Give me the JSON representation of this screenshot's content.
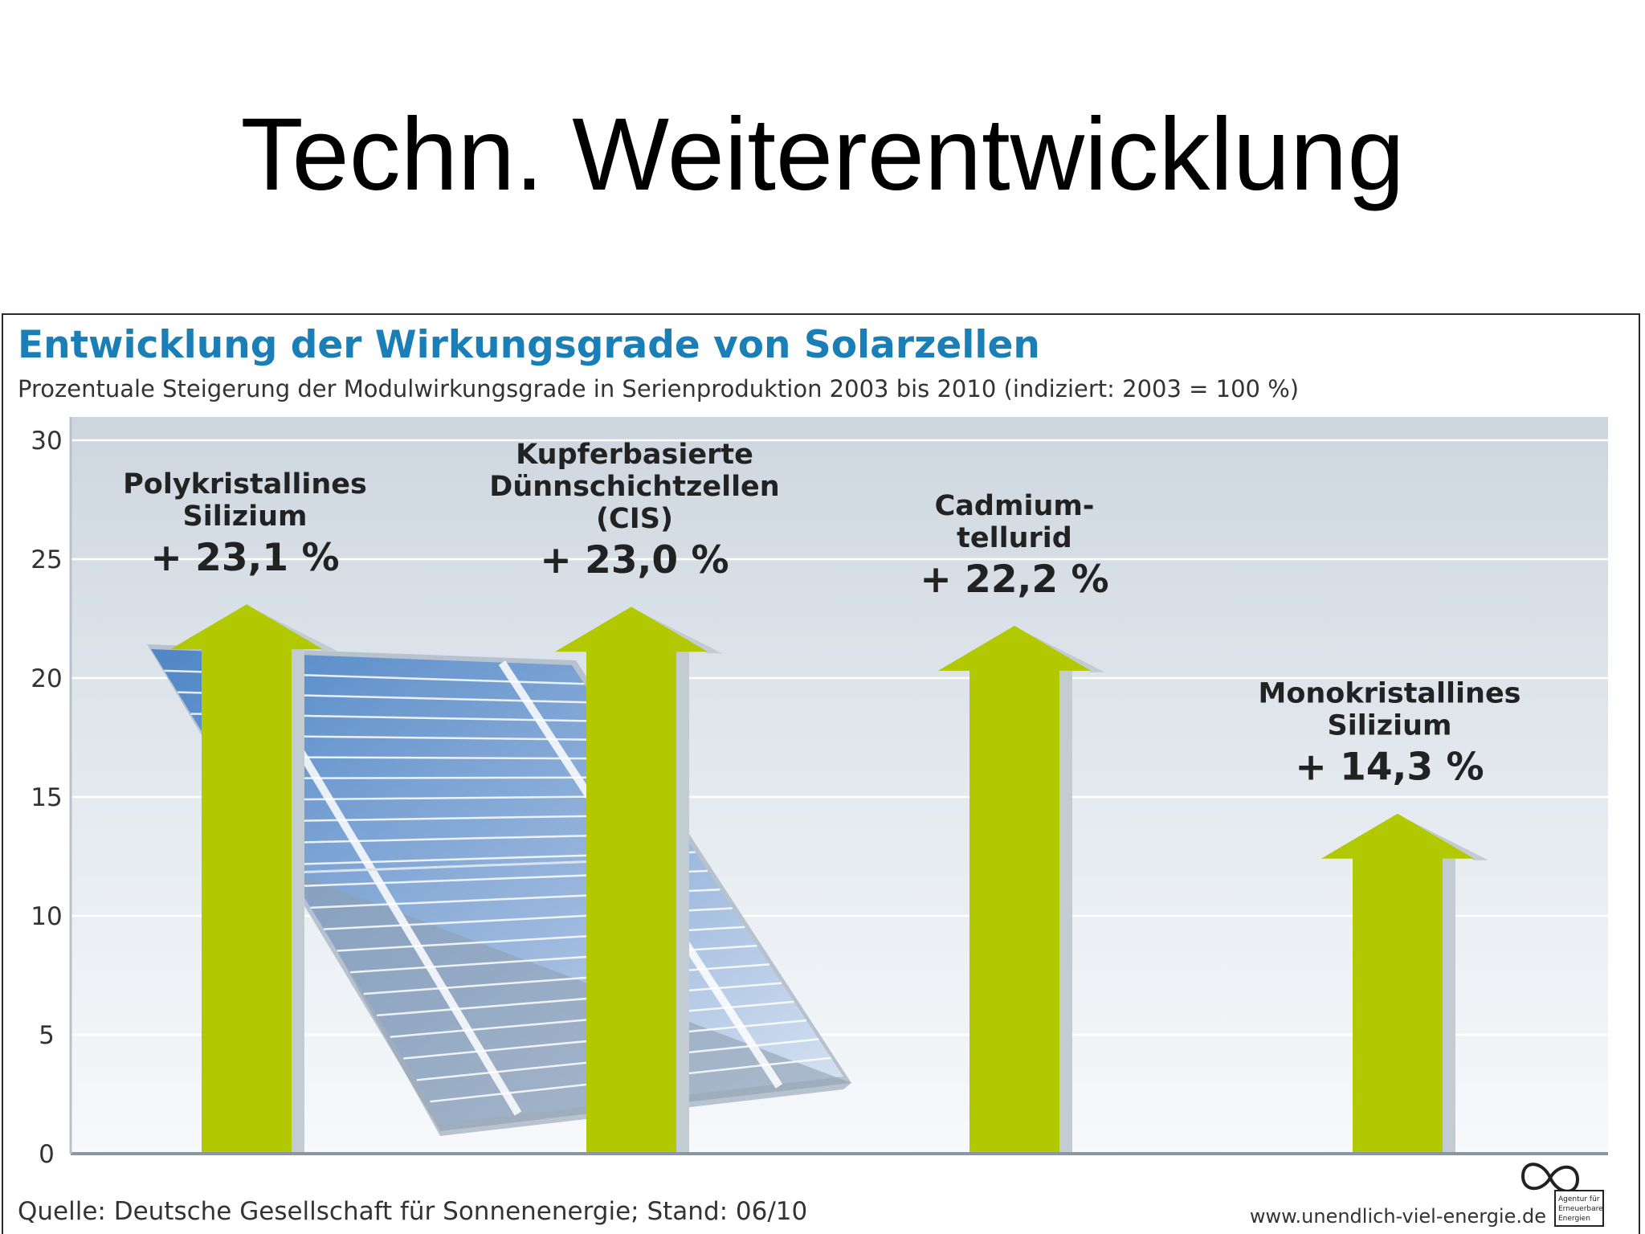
{
  "slide": {
    "title": "Techn. Weiterentwicklung"
  },
  "chart_data": {
    "type": "bar",
    "title": "Entwicklung der Wirkungsgrade von Solarzellen",
    "subtitle": "Prozentuale Steigerung der Modulwirkungsgrade in Serienproduktion 2003 bis 2010 (indiziert: 2003 = 100 %)",
    "xlabel": "",
    "ylabel": "",
    "ylim": [
      0,
      30
    ],
    "yticks": [
      "0",
      "5",
      "10",
      "15",
      "20",
      "25",
      "30"
    ],
    "grid": true,
    "categories": [
      [
        "Polykristallines",
        "Silizium"
      ],
      [
        "Kupferbasierte",
        "Dünnschichtzellen",
        "(CIS)"
      ],
      [
        "Cadmium-",
        "tellurid"
      ],
      [
        "Monokristallines",
        "Silizium"
      ]
    ],
    "values": [
      23.1,
      23.0,
      22.2,
      14.3
    ],
    "value_labels": [
      "+ 23,1 %",
      "+ 23,0 %",
      "+ 22,2 %",
      "+ 14,3 %"
    ],
    "bar_color": "#b2c800",
    "bar_shadow_color": "#c3cbd3",
    "title_color": "#1b7fb7",
    "source": "Quelle: Deutsche Gesellschaft für Sonnenenergie; Stand: 06/10",
    "website": "www.unendlich-viel-energie.de",
    "logo_text": [
      "Agentur für",
      "Erneuerbare",
      "Energien"
    ]
  }
}
